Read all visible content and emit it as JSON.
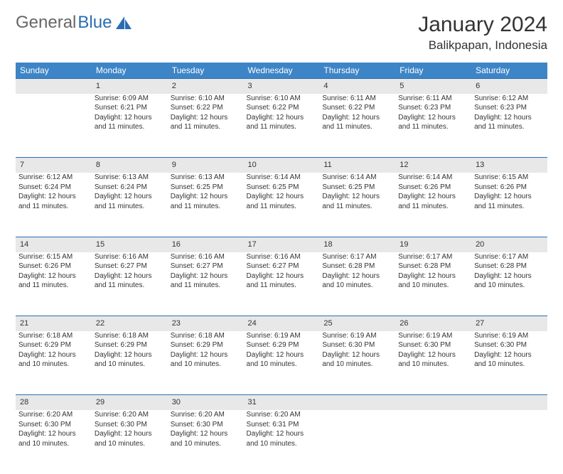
{
  "brand": {
    "part1": "General",
    "part2": "Blue"
  },
  "title": "January 2024",
  "location": "Balikpapan, Indonesia",
  "weekdays": [
    "Sunday",
    "Monday",
    "Tuesday",
    "Wednesday",
    "Thursday",
    "Friday",
    "Saturday"
  ],
  "colors": {
    "header_bg": "#3d85c6",
    "header_text": "#ffffff",
    "daynum_bg": "#e8e8e8",
    "rule": "#2a6db3",
    "brand_blue": "#2a6db3",
    "text": "#333333"
  },
  "weeks": [
    [
      null,
      {
        "n": "1",
        "sr": "6:09 AM",
        "ss": "6:21 PM",
        "dl": "12 hours and 11 minutes."
      },
      {
        "n": "2",
        "sr": "6:10 AM",
        "ss": "6:22 PM",
        "dl": "12 hours and 11 minutes."
      },
      {
        "n": "3",
        "sr": "6:10 AM",
        "ss": "6:22 PM",
        "dl": "12 hours and 11 minutes."
      },
      {
        "n": "4",
        "sr": "6:11 AM",
        "ss": "6:22 PM",
        "dl": "12 hours and 11 minutes."
      },
      {
        "n": "5",
        "sr": "6:11 AM",
        "ss": "6:23 PM",
        "dl": "12 hours and 11 minutes."
      },
      {
        "n": "6",
        "sr": "6:12 AM",
        "ss": "6:23 PM",
        "dl": "12 hours and 11 minutes."
      }
    ],
    [
      {
        "n": "7",
        "sr": "6:12 AM",
        "ss": "6:24 PM",
        "dl": "12 hours and 11 minutes."
      },
      {
        "n": "8",
        "sr": "6:13 AM",
        "ss": "6:24 PM",
        "dl": "12 hours and 11 minutes."
      },
      {
        "n": "9",
        "sr": "6:13 AM",
        "ss": "6:25 PM",
        "dl": "12 hours and 11 minutes."
      },
      {
        "n": "10",
        "sr": "6:14 AM",
        "ss": "6:25 PM",
        "dl": "12 hours and 11 minutes."
      },
      {
        "n": "11",
        "sr": "6:14 AM",
        "ss": "6:25 PM",
        "dl": "12 hours and 11 minutes."
      },
      {
        "n": "12",
        "sr": "6:14 AM",
        "ss": "6:26 PM",
        "dl": "12 hours and 11 minutes."
      },
      {
        "n": "13",
        "sr": "6:15 AM",
        "ss": "6:26 PM",
        "dl": "12 hours and 11 minutes."
      }
    ],
    [
      {
        "n": "14",
        "sr": "6:15 AM",
        "ss": "6:26 PM",
        "dl": "12 hours and 11 minutes."
      },
      {
        "n": "15",
        "sr": "6:16 AM",
        "ss": "6:27 PM",
        "dl": "12 hours and 11 minutes."
      },
      {
        "n": "16",
        "sr": "6:16 AM",
        "ss": "6:27 PM",
        "dl": "12 hours and 11 minutes."
      },
      {
        "n": "17",
        "sr": "6:16 AM",
        "ss": "6:27 PM",
        "dl": "12 hours and 11 minutes."
      },
      {
        "n": "18",
        "sr": "6:17 AM",
        "ss": "6:28 PM",
        "dl": "12 hours and 10 minutes."
      },
      {
        "n": "19",
        "sr": "6:17 AM",
        "ss": "6:28 PM",
        "dl": "12 hours and 10 minutes."
      },
      {
        "n": "20",
        "sr": "6:17 AM",
        "ss": "6:28 PM",
        "dl": "12 hours and 10 minutes."
      }
    ],
    [
      {
        "n": "21",
        "sr": "6:18 AM",
        "ss": "6:29 PM",
        "dl": "12 hours and 10 minutes."
      },
      {
        "n": "22",
        "sr": "6:18 AM",
        "ss": "6:29 PM",
        "dl": "12 hours and 10 minutes."
      },
      {
        "n": "23",
        "sr": "6:18 AM",
        "ss": "6:29 PM",
        "dl": "12 hours and 10 minutes."
      },
      {
        "n": "24",
        "sr": "6:19 AM",
        "ss": "6:29 PM",
        "dl": "12 hours and 10 minutes."
      },
      {
        "n": "25",
        "sr": "6:19 AM",
        "ss": "6:30 PM",
        "dl": "12 hours and 10 minutes."
      },
      {
        "n": "26",
        "sr": "6:19 AM",
        "ss": "6:30 PM",
        "dl": "12 hours and 10 minutes."
      },
      {
        "n": "27",
        "sr": "6:19 AM",
        "ss": "6:30 PM",
        "dl": "12 hours and 10 minutes."
      }
    ],
    [
      {
        "n": "28",
        "sr": "6:20 AM",
        "ss": "6:30 PM",
        "dl": "12 hours and 10 minutes."
      },
      {
        "n": "29",
        "sr": "6:20 AM",
        "ss": "6:30 PM",
        "dl": "12 hours and 10 minutes."
      },
      {
        "n": "30",
        "sr": "6:20 AM",
        "ss": "6:30 PM",
        "dl": "12 hours and 10 minutes."
      },
      {
        "n": "31",
        "sr": "6:20 AM",
        "ss": "6:31 PM",
        "dl": "12 hours and 10 minutes."
      },
      null,
      null,
      null
    ]
  ],
  "labels": {
    "sunrise": "Sunrise:",
    "sunset": "Sunset:",
    "daylight": "Daylight:"
  }
}
